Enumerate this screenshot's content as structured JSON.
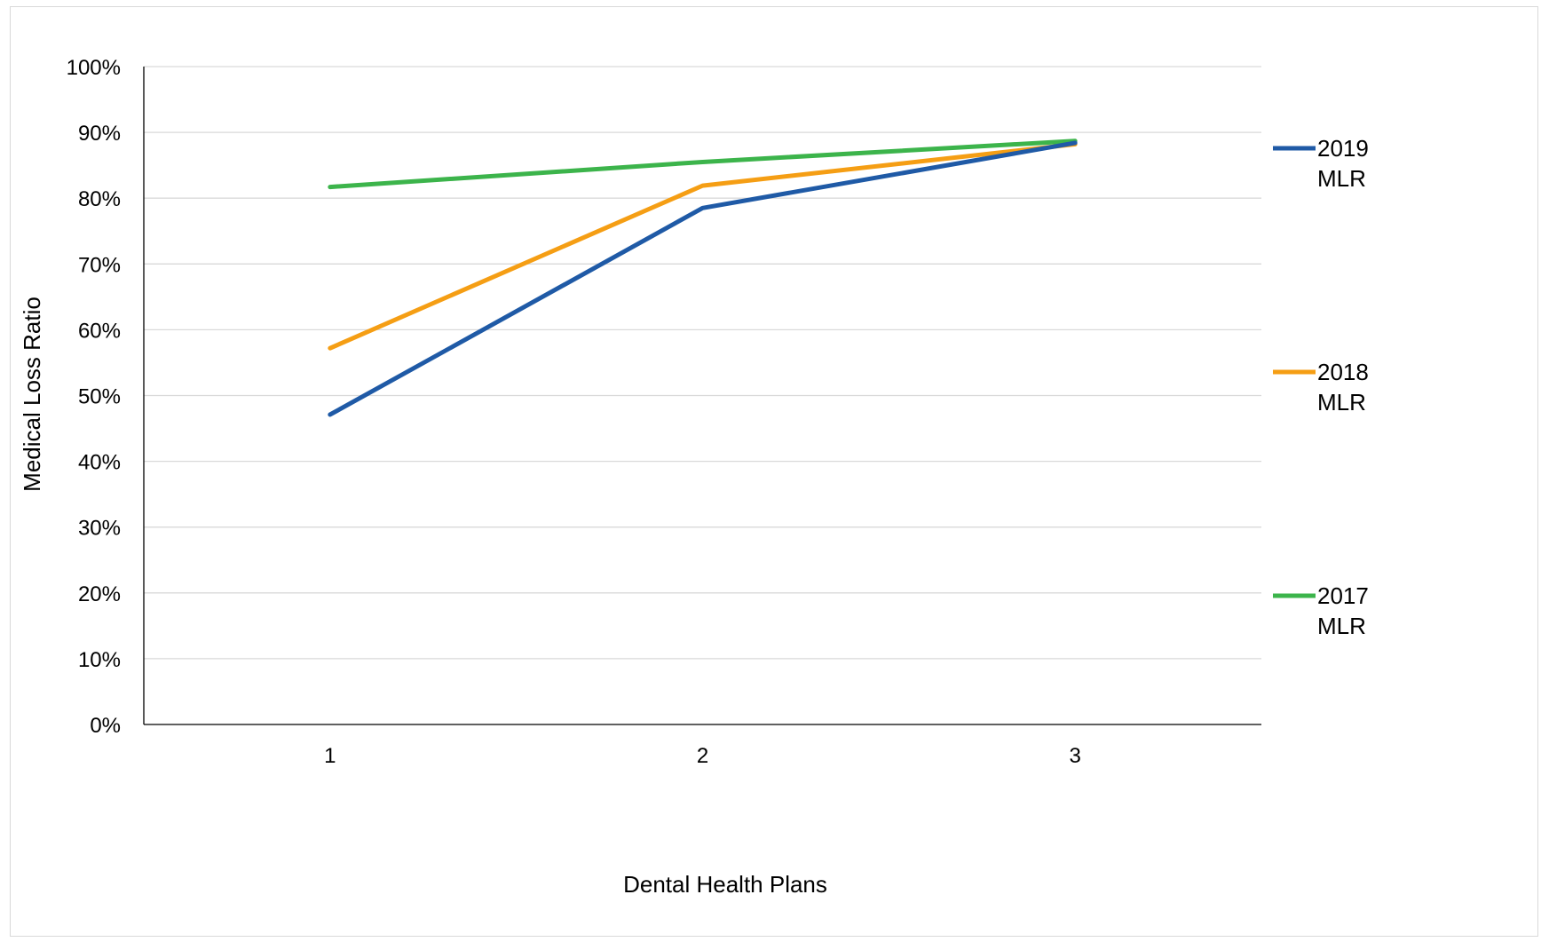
{
  "chart_data": {
    "type": "line",
    "title": "",
    "xlabel": "Dental Health Plans",
    "ylabel": "Medical Loss Ratio",
    "categories": [
      "1",
      "2",
      "3"
    ],
    "ylim": [
      0,
      100
    ],
    "yticks": [
      "0%",
      "10%",
      "20%",
      "30%",
      "40%",
      "50%",
      "60%",
      "70%",
      "80%",
      "90%",
      "100%"
    ],
    "grid": true,
    "legend_position": "right",
    "series": [
      {
        "name": "2019 MLR",
        "color": "#1f5aa6",
        "values": [
          47.1,
          78.5,
          88.4
        ]
      },
      {
        "name": "2018 MLR",
        "color": "#f59e14",
        "values": [
          57.2,
          81.9,
          88.2
        ]
      },
      {
        "name": "2017 MLR",
        "color": "#3cb44b",
        "values": [
          81.7,
          85.5,
          88.7
        ]
      }
    ]
  }
}
